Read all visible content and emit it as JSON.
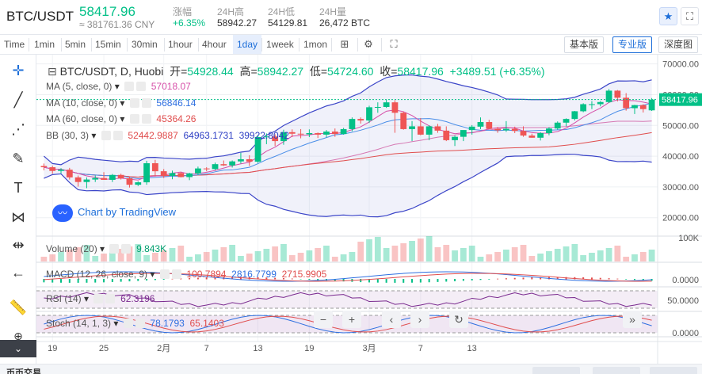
{
  "header": {
    "pair": "BTC/USDT",
    "price": "58417.96",
    "cny": "≈ 381761.36 CNY",
    "stats": [
      {
        "label": "涨幅",
        "value": "+6.35%"
      },
      {
        "label": "24H高",
        "value": "58942.27"
      },
      {
        "label": "24H低",
        "value": "54129.81"
      },
      {
        "label": "24H量",
        "value": "26,472 BTC"
      }
    ],
    "star_icon": "star-icon",
    "expand_icon": "fullscreen-icon"
  },
  "toolbar": {
    "timeframes": [
      "Time",
      "1min",
      "5min",
      "15min",
      "30min",
      "1hour",
      "4hour",
      "1day",
      "1week",
      "1mon"
    ],
    "active_timeframe": "1day",
    "views": [
      "基本版",
      "专业版",
      "深度图"
    ],
    "active_view": "专业版"
  },
  "legend": {
    "ohlc": {
      "source": "BTC/USDT, D, Huobi",
      "o_label": "开=",
      "o": "54928.44",
      "h_label": "高=",
      "h": "58942.27",
      "l_label": "低=",
      "l": "54724.60",
      "c_label": "收=",
      "c": "58417.96",
      "chg": "+3489.51 (+6.35%)"
    },
    "ma5": {
      "label": "MA (5, close, 0)",
      "value": "57018.07",
      "color": "#d64fa8"
    },
    "ma10": {
      "label": "MA (10, close, 0)",
      "value": "56846.14",
      "color": "#2e6fe0"
    },
    "ma60": {
      "label": "MA (60, close, 0)",
      "value": "45364.26",
      "color": "#e04d4d"
    },
    "bb": {
      "label": "BB (30, 3)",
      "v1": "52442.9887",
      "v2": "64963.1731",
      "v3": "39922.8042"
    },
    "volume": {
      "label": "Volume (20)",
      "value": "9.843K"
    },
    "macd": {
      "label": "MACD (12, 26, close, 9)",
      "v1": "100.7894",
      "v2": "2816.7799",
      "v3": "2715.9905"
    },
    "rsi": {
      "label": "RSI (14)",
      "value": "62.3196"
    },
    "stoch": {
      "label": "Stoch (14, 1, 3)",
      "v1": "78.1793",
      "v2": "65.1403"
    },
    "tv_label": "Chart by TradingView"
  },
  "price_axis": [
    "70000.00",
    "60000.00",
    "50000.00",
    "40000.00",
    "30000.00",
    "20000.00"
  ],
  "last_price_tag": "58417.96",
  "volume_axis": "100K",
  "macd_axis": "0.0000",
  "rsi_axis": "50.0000",
  "stoch_axis": "0.0000",
  "time_axis": [
    "19",
    "25",
    "2月",
    "7",
    "13",
    "19",
    "3月",
    "7",
    "13"
  ],
  "bottom": {
    "title": "币币交易",
    "buttons": [
      "",
      "",
      ""
    ]
  },
  "colors": {
    "up": "#03c087",
    "down": "#ef5555",
    "accent": "#1e6fd9"
  },
  "chart_data": {
    "type": "candlestick",
    "series": [
      {
        "name": "BTC/USDT",
        "ohlc": [
          [
            36800,
            37600,
            35400,
            36400
          ],
          [
            36400,
            36900,
            34300,
            35200
          ],
          [
            35200,
            36100,
            34400,
            35600
          ],
          [
            35600,
            36200,
            32400,
            33100
          ],
          [
            33100,
            33700,
            30100,
            31600
          ],
          [
            31600,
            33100,
            29600,
            32400
          ],
          [
            32400,
            33700,
            31600,
            32900
          ],
          [
            32900,
            34800,
            32300,
            32300
          ],
          [
            32300,
            34200,
            31600,
            33900
          ],
          [
            33900,
            34300,
            32400,
            32800
          ],
          [
            32800,
            33400,
            29800,
            30700
          ],
          [
            30700,
            31800,
            30300,
            31500
          ],
          [
            31500,
            38500,
            30700,
            37700
          ],
          [
            37700,
            38800,
            33400,
            35100
          ],
          [
            35100,
            35800,
            32900,
            33600
          ],
          [
            33600,
            35300,
            32500,
            34500
          ],
          [
            34500,
            34900,
            33100,
            33200
          ],
          [
            33200,
            34600,
            32200,
            34400
          ],
          [
            34400,
            36600,
            33800,
            36000
          ],
          [
            36000,
            36400,
            35100,
            35800
          ],
          [
            35800,
            37900,
            35400,
            37400
          ],
          [
            37400,
            38600,
            36800,
            37000
          ],
          [
            37000,
            38600,
            36300,
            38300
          ],
          [
            38300,
            41100,
            37600,
            39000
          ],
          [
            39000,
            40300,
            36800,
            38200
          ],
          [
            38200,
            46900,
            37800,
            46200
          ],
          [
            46200,
            47400,
            43900,
            46400
          ],
          [
            46400,
            47100,
            43300,
            44900
          ],
          [
            44900,
            48600,
            43700,
            47800
          ],
          [
            47800,
            48700,
            46200,
            47300
          ],
          [
            47300,
            48800,
            45800,
            47100
          ],
          [
            47100,
            48700,
            46200,
            47500
          ],
          [
            47500,
            47700,
            45900,
            47000
          ],
          [
            47000,
            48500,
            46100,
            48000
          ],
          [
            48000,
            49000,
            46300,
            47200
          ],
          [
            47200,
            49200,
            47000,
            48800
          ],
          [
            48800,
            52600,
            48100,
            52100
          ],
          [
            52100,
            52600,
            50600,
            51600
          ],
          [
            51600,
            56400,
            50800,
            55900
          ],
          [
            55900,
            57500,
            54100,
            56000
          ],
          [
            56000,
            58300,
            55700,
            57500
          ],
          [
            57500,
            58200,
            47600,
            54100
          ],
          [
            54100,
            54500,
            48600,
            48800
          ],
          [
            48800,
            51400,
            44900,
            49700
          ],
          [
            49700,
            52400,
            46800,
            47000
          ],
          [
            47000,
            50000,
            45200,
            49700
          ],
          [
            49700,
            50500,
            47600,
            48300
          ],
          [
            48300,
            49700,
            44900,
            45200
          ],
          [
            45200,
            46700,
            43300,
            46300
          ],
          [
            46300,
            48200,
            44900,
            48500
          ],
          [
            48500,
            50100,
            47000,
            49600
          ],
          [
            49600,
            52600,
            48800,
            51100
          ],
          [
            51100,
            51800,
            48900,
            48900
          ],
          [
            48900,
            49500,
            47600,
            48400
          ],
          [
            48400,
            51400,
            47900,
            48900
          ],
          [
            48900,
            49600,
            47500,
            48200
          ],
          [
            48200,
            49700,
            46300,
            46700
          ],
          [
            46700,
            47300,
            46000,
            46000
          ],
          [
            46000,
            47800,
            45100,
            47500
          ],
          [
            47500,
            49400,
            46800,
            49000
          ],
          [
            49000,
            51300,
            48600,
            50900
          ],
          [
            50900,
            52300,
            49700,
            52100
          ],
          [
            52100,
            54700,
            51600,
            54600
          ],
          [
            54600,
            57200,
            54300,
            56900
          ],
          [
            56900,
            57900,
            55300,
            56900
          ],
          [
            56900,
            57900,
            56200,
            57600
          ],
          [
            57600,
            61800,
            57300,
            61300
          ],
          [
            61300,
            61500,
            57800,
            59000
          ],
          [
            59000,
            60500,
            54800,
            55600
          ],
          [
            55600,
            56700,
            53700,
            56600
          ],
          [
            56600,
            56900,
            54200,
            55300
          ],
          [
            54900,
            58900,
            54700,
            58400
          ]
        ]
      },
      {
        "name": "MA (5, close, 0)"
      },
      {
        "name": "MA (10, close, 0)"
      },
      {
        "name": "MA (60, close, 0)"
      },
      {
        "name": "BB (30, 3)"
      }
    ],
    "ylim": [
      14000,
      73000
    ],
    "x_ticks": [
      "19",
      "25",
      "2月",
      "7",
      "13",
      "19",
      "3月",
      "7",
      "13"
    ]
  }
}
